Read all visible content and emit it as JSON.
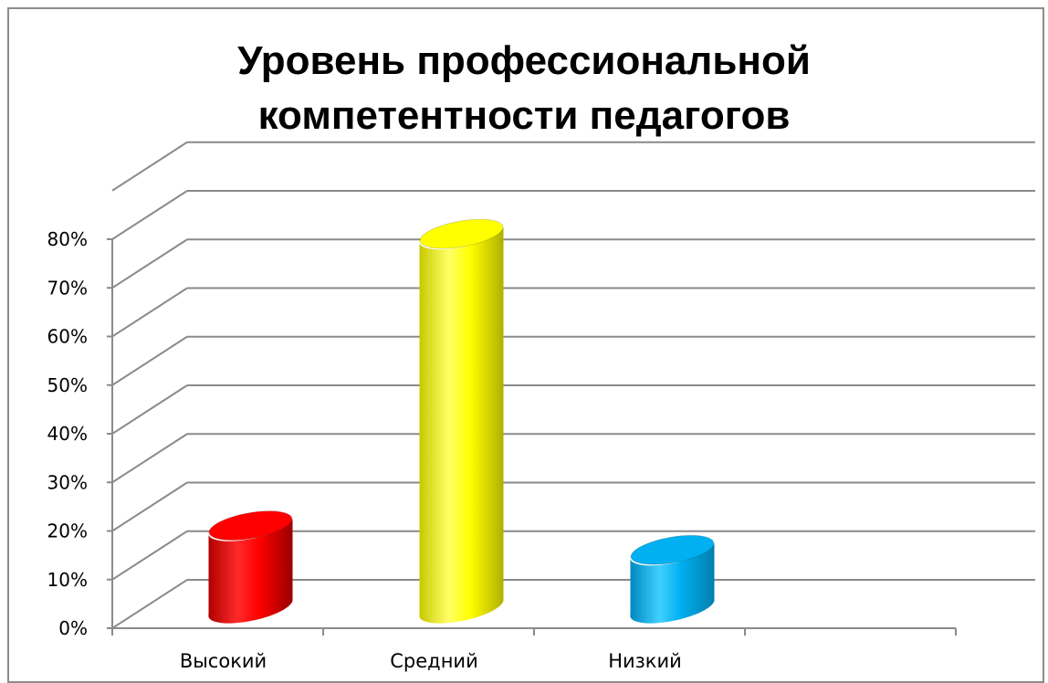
{
  "chart_data": {
    "type": "bar",
    "title": "Уровень профессиональной компетентности педагогов",
    "title_lines": [
      "Уровень профессиональной",
      "компетентности педагогов"
    ],
    "style": "3d-cylinder",
    "categories": [
      "Высокий",
      "Средний",
      "Низкий"
    ],
    "values": [
      15,
      75,
      10
    ],
    "value_unit": "%",
    "colors": [
      "#ff0000",
      "#ffff00",
      "#00b0f0"
    ],
    "yticks": [
      "0%",
      "10%",
      "20%",
      "30%",
      "40%",
      "50%",
      "60%",
      "70%",
      "80%"
    ],
    "ylim": [
      0,
      80
    ],
    "grid": true,
    "legend": "none"
  }
}
